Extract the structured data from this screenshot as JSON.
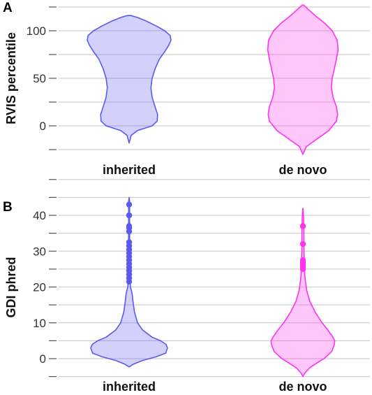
{
  "panel_labels": [
    "A",
    "B"
  ],
  "colors": {
    "inherited": "#5a5af0",
    "de_novo": "#ff33ee"
  },
  "chart_data": [
    {
      "type": "violin",
      "panel": "A",
      "title": "",
      "ylabel": "RVIS percentile",
      "xlabel": "",
      "categories": [
        "inherited",
        "de novo"
      ],
      "yticks": [
        0,
        50,
        100
      ],
      "ylim": [
        -20,
        128
      ],
      "grid": true,
      "series": [
        {
          "name": "inherited",
          "color": "#5a5af0",
          "profile": [
            [
              -18,
              0.0
            ],
            [
              -10,
              0.05
            ],
            [
              -5,
              0.2
            ],
            [
              0,
              0.55
            ],
            [
              5,
              0.67
            ],
            [
              12,
              0.68
            ],
            [
              20,
              0.62
            ],
            [
              30,
              0.55
            ],
            [
              40,
              0.52
            ],
            [
              50,
              0.55
            ],
            [
              60,
              0.62
            ],
            [
              70,
              0.72
            ],
            [
              78,
              0.85
            ],
            [
              85,
              0.95
            ],
            [
              90,
              1.0
            ],
            [
              95,
              0.98
            ],
            [
              100,
              0.85
            ],
            [
              105,
              0.65
            ],
            [
              110,
              0.42
            ],
            [
              114,
              0.2
            ],
            [
              116,
              0.04
            ]
          ]
        },
        {
          "name": "de novo",
          "color": "#ff33ee",
          "profile": [
            [
              -30,
              0.0
            ],
            [
              -22,
              0.08
            ],
            [
              -15,
              0.3
            ],
            [
              -5,
              0.62
            ],
            [
              5,
              0.8
            ],
            [
              12,
              0.83
            ],
            [
              20,
              0.8
            ],
            [
              30,
              0.72
            ],
            [
              40,
              0.68
            ],
            [
              50,
              0.7
            ],
            [
              60,
              0.75
            ],
            [
              70,
              0.8
            ],
            [
              80,
              0.84
            ],
            [
              90,
              0.82
            ],
            [
              100,
              0.7
            ],
            [
              108,
              0.52
            ],
            [
              115,
              0.32
            ],
            [
              122,
              0.14
            ],
            [
              127,
              0.02
            ]
          ]
        }
      ]
    },
    {
      "type": "violin",
      "panel": "B",
      "title": "",
      "ylabel": "GDI phred",
      "xlabel": "",
      "categories": [
        "inherited",
        "de novo"
      ],
      "yticks": [
        0,
        10,
        20,
        30,
        40
      ],
      "ylim": [
        -3,
        45
      ],
      "grid": true,
      "series": [
        {
          "name": "inherited",
          "color": "#5a5af0",
          "profile": [
            [
              -2.3,
              0.0
            ],
            [
              -1.5,
              0.12
            ],
            [
              -0.5,
              0.35
            ],
            [
              0.5,
              0.7
            ],
            [
              1.5,
              0.95
            ],
            [
              3,
              1.0
            ],
            [
              4,
              0.96
            ],
            [
              5,
              0.82
            ],
            [
              6,
              0.6
            ],
            [
              8,
              0.35
            ],
            [
              10,
              0.22
            ],
            [
              13,
              0.14
            ],
            [
              16,
              0.1
            ],
            [
              18,
              0.08
            ],
            [
              19,
              0.06
            ],
            [
              20,
              0.035
            ],
            [
              22,
              0.02
            ],
            [
              30,
              0.015
            ],
            [
              40,
              0.012
            ],
            [
              44,
              0.01
            ],
            [
              45,
              0.0
            ]
          ],
          "outliers": [
            21.5,
            22.5,
            23.5,
            24.5,
            25.5,
            26.5,
            27.5,
            28.5,
            29.5,
            30.5,
            31.5,
            32.5,
            35.5,
            36.5,
            37,
            40,
            43
          ]
        },
        {
          "name": "de novo",
          "color": "#ff33ee",
          "profile": [
            [
              -5,
              0.0
            ],
            [
              -4,
              0.05
            ],
            [
              -2.5,
              0.18
            ],
            [
              -1,
              0.4
            ],
            [
              0,
              0.55
            ],
            [
              2,
              0.75
            ],
            [
              4,
              0.82
            ],
            [
              5,
              0.83
            ],
            [
              6,
              0.78
            ],
            [
              8,
              0.65
            ],
            [
              10,
              0.5
            ],
            [
              13,
              0.32
            ],
            [
              16,
              0.18
            ],
            [
              19,
              0.1
            ],
            [
              22,
              0.06
            ],
            [
              24,
              0.045
            ],
            [
              25,
              0.04
            ],
            [
              30,
              0.03
            ],
            [
              36,
              0.025
            ],
            [
              40,
              0.015
            ],
            [
              42,
              0.0
            ]
          ],
          "outliers": [
            25,
            25.5,
            26,
            26.5,
            27,
            27.5,
            32,
            37
          ]
        }
      ]
    }
  ]
}
